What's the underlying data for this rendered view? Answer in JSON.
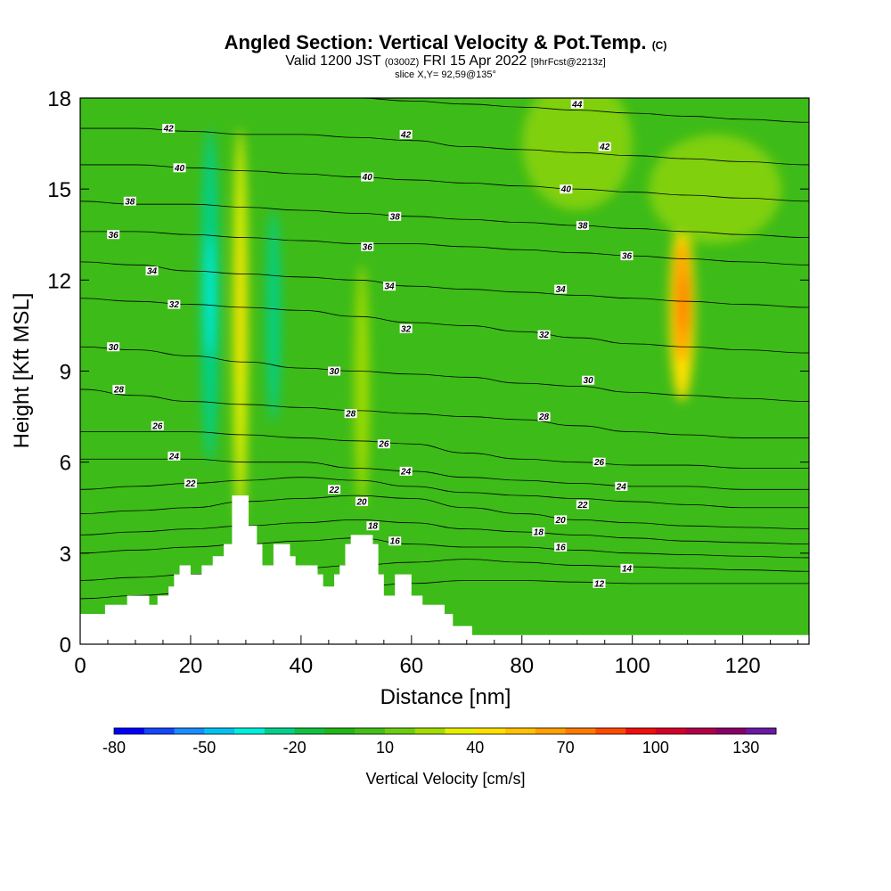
{
  "chart_data": {
    "type": "heatmap",
    "title": "Angled Section: Vertical Velocity & Pot.Temp.",
    "title_unit": "(C)",
    "subtitle_prefix": "Valid 1200 JST",
    "subtitle_zulu": "(0300Z)",
    "subtitle_date": "FRI 15 Apr 2022",
    "subtitle_fcst": "[9hrFcst@2213z]",
    "slice_label": "slice X,Y= 92,59@135°",
    "xlabel": "Distance [nm]",
    "ylabel": "Height [Kft MSL]",
    "xlim": [
      0,
      132
    ],
    "ylim": [
      0,
      18
    ],
    "x_ticks": [
      0,
      20,
      40,
      60,
      80,
      100,
      120
    ],
    "y_ticks": [
      0,
      3,
      6,
      9,
      12,
      15,
      18
    ],
    "colorbar": {
      "label": "Vertical Velocity [cm/s]",
      "tick_labels": [
        "-80",
        "-50",
        "-20",
        "10",
        "40",
        "70",
        "100",
        "130"
      ],
      "colors": [
        "#0000ff",
        "#1446ff",
        "#1a8cff",
        "#00c2f0",
        "#00eedd",
        "#00d08a",
        "#10c040",
        "#22b518",
        "#44bf18",
        "#6ccd10",
        "#a3dc00",
        "#e6ee00",
        "#ffe000",
        "#ffc200",
        "#ffa000",
        "#ff7a00",
        "#ff4a00",
        "#ee1010",
        "#d40028",
        "#b00048",
        "#8a0066",
        "#6a1aa0"
      ]
    },
    "theta_contours": [
      {
        "value": 12,
        "y": [
          1.5,
          1.6,
          1.7,
          1.75,
          1.8,
          1.9,
          2.0,
          2.1,
          2.1,
          2.05,
          2.0,
          2.0,
          2.0,
          2.0
        ]
      },
      {
        "value": 14,
        "y": [
          2.1,
          2.2,
          2.3,
          2.4,
          2.5,
          2.6,
          2.7,
          2.8,
          2.7,
          2.6,
          2.55,
          2.5,
          2.45,
          2.4
        ]
      },
      {
        "value": 16,
        "y": [
          3.0,
          3.1,
          3.2,
          3.3,
          3.4,
          3.5,
          3.3,
          3.2,
          3.2,
          3.1,
          3.0,
          2.95,
          2.9,
          2.85
        ]
      },
      {
        "value": 18,
        "y": [
          3.6,
          3.7,
          3.8,
          3.9,
          4.0,
          4.1,
          4.0,
          3.8,
          3.7,
          3.6,
          3.5,
          3.4,
          3.35,
          3.3
        ]
      },
      {
        "value": 20,
        "y": [
          4.3,
          4.4,
          4.5,
          4.7,
          4.8,
          4.9,
          4.8,
          4.5,
          4.3,
          4.1,
          4.0,
          3.9,
          3.85,
          3.8
        ]
      },
      {
        "value": 22,
        "y": [
          5.1,
          5.2,
          5.3,
          5.4,
          5.5,
          5.4,
          5.2,
          5.0,
          4.9,
          4.8,
          4.7,
          4.6,
          4.5,
          4.5
        ]
      },
      {
        "value": 24,
        "y": [
          6.1,
          6.1,
          6.1,
          6.0,
          6.0,
          5.8,
          5.7,
          5.5,
          5.4,
          5.3,
          5.2,
          5.2,
          5.1,
          5.1
        ]
      },
      {
        "value": 26,
        "y": [
          7.0,
          7.0,
          7.0,
          6.9,
          6.8,
          6.7,
          6.6,
          6.3,
          6.1,
          6.0,
          5.9,
          5.9,
          5.8,
          5.8
        ]
      },
      {
        "value": 28,
        "y": [
          8.4,
          8.2,
          8.0,
          7.9,
          7.8,
          7.7,
          7.6,
          7.5,
          7.4,
          7.2,
          7.0,
          6.9,
          6.8,
          6.8
        ]
      },
      {
        "value": 30,
        "y": [
          9.8,
          9.7,
          9.5,
          9.3,
          9.1,
          9.0,
          8.9,
          8.8,
          8.6,
          8.5,
          8.3,
          8.2,
          8.1,
          8.0
        ]
      },
      {
        "value": 32,
        "y": [
          11.4,
          11.3,
          11.2,
          11.1,
          11.0,
          10.8,
          10.6,
          10.5,
          10.3,
          10.1,
          9.9,
          9.8,
          9.7,
          9.6
        ]
      },
      {
        "value": 34,
        "y": [
          12.6,
          12.5,
          12.3,
          12.2,
          12.1,
          12.0,
          11.8,
          11.7,
          11.6,
          11.5,
          11.4,
          11.3,
          11.2,
          11.1
        ]
      },
      {
        "value": 36,
        "y": [
          13.6,
          13.6,
          13.5,
          13.4,
          13.3,
          13.2,
          13.2,
          13.1,
          13.0,
          12.9,
          12.8,
          12.7,
          12.6,
          12.5
        ]
      },
      {
        "value": 38,
        "y": [
          14.6,
          14.5,
          14.5,
          14.4,
          14.3,
          14.2,
          14.1,
          14.0,
          13.9,
          13.8,
          13.7,
          13.6,
          13.5,
          13.4
        ]
      },
      {
        "value": 40,
        "y": [
          15.8,
          15.8,
          15.7,
          15.6,
          15.5,
          15.4,
          15.3,
          15.2,
          15.1,
          15.0,
          14.9,
          14.8,
          14.7,
          14.6
        ]
      },
      {
        "value": 42,
        "y": [
          17.0,
          17.0,
          16.9,
          16.8,
          16.8,
          16.7,
          16.6,
          16.4,
          16.3,
          16.2,
          16.1,
          16.0,
          15.9,
          15.8
        ]
      },
      {
        "value": 44,
        "y": [
          18.2,
          18.2,
          18.1,
          18.1,
          18.0,
          18.0,
          17.9,
          17.8,
          17.7,
          17.6,
          17.5,
          17.4,
          17.3,
          17.2
        ]
      }
    ],
    "contour_x": [
      0,
      10,
      20,
      30,
      40,
      50,
      60,
      70,
      80,
      90,
      100,
      110,
      120,
      132
    ],
    "contour_labels": [
      {
        "text": "42",
        "x": 16,
        "y": 17.0
      },
      {
        "text": "40",
        "x": 18,
        "y": 15.7
      },
      {
        "text": "38",
        "x": 9,
        "y": 14.6
      },
      {
        "text": "36",
        "x": 6,
        "y": 13.5
      },
      {
        "text": "34",
        "x": 13,
        "y": 12.3
      },
      {
        "text": "32",
        "x": 17,
        "y": 11.2
      },
      {
        "text": "30",
        "x": 6,
        "y": 9.8
      },
      {
        "text": "28",
        "x": 7,
        "y": 8.4
      },
      {
        "text": "26",
        "x": 14,
        "y": 7.2
      },
      {
        "text": "24",
        "x": 17,
        "y": 6.2
      },
      {
        "text": "22",
        "x": 20,
        "y": 5.3
      },
      {
        "text": "42",
        "x": 59,
        "y": 16.8
      },
      {
        "text": "40",
        "x": 52,
        "y": 15.4
      },
      {
        "text": "38",
        "x": 57,
        "y": 14.1
      },
      {
        "text": "36",
        "x": 52,
        "y": 13.1
      },
      {
        "text": "34",
        "x": 56,
        "y": 11.8
      },
      {
        "text": "32",
        "x": 59,
        "y": 10.4
      },
      {
        "text": "30",
        "x": 46,
        "y": 9.0
      },
      {
        "text": "28",
        "x": 49,
        "y": 7.6
      },
      {
        "text": "26",
        "x": 55,
        "y": 6.6
      },
      {
        "text": "24",
        "x": 59,
        "y": 5.7
      },
      {
        "text": "22",
        "x": 46,
        "y": 5.1
      },
      {
        "text": "20",
        "x": 51,
        "y": 4.7
      },
      {
        "text": "18",
        "x": 53,
        "y": 3.9
      },
      {
        "text": "16",
        "x": 57,
        "y": 3.4
      },
      {
        "text": "44",
        "x": 90,
        "y": 17.8
      },
      {
        "text": "42",
        "x": 95,
        "y": 16.4
      },
      {
        "text": "40",
        "x": 88,
        "y": 15.0
      },
      {
        "text": "38",
        "x": 91,
        "y": 13.8
      },
      {
        "text": "36",
        "x": 99,
        "y": 12.8
      },
      {
        "text": "34",
        "x": 87,
        "y": 11.7
      },
      {
        "text": "32",
        "x": 84,
        "y": 10.2
      },
      {
        "text": "30",
        "x": 92,
        "y": 8.7
      },
      {
        "text": "28",
        "x": 84,
        "y": 7.5
      },
      {
        "text": "26",
        "x": 94,
        "y": 6.0
      },
      {
        "text": "24",
        "x": 98,
        "y": 5.2
      },
      {
        "text": "22",
        "x": 91,
        "y": 4.6
      },
      {
        "text": "20",
        "x": 87,
        "y": 4.1
      },
      {
        "text": "18",
        "x": 83,
        "y": 3.7
      },
      {
        "text": "16",
        "x": 87,
        "y": 3.2
      },
      {
        "text": "14",
        "x": 99,
        "y": 2.5
      },
      {
        "text": "12",
        "x": 94,
        "y": 2.0
      }
    ],
    "terrain": [
      {
        "x": 0,
        "y": 1.0
      },
      {
        "x": 4.5,
        "y": 1.0
      },
      {
        "x": 4.5,
        "y": 1.3
      },
      {
        "x": 8.5,
        "y": 1.3
      },
      {
        "x": 8.5,
        "y": 1.6
      },
      {
        "x": 12.5,
        "y": 1.6
      },
      {
        "x": 12.5,
        "y": 1.3
      },
      {
        "x": 14,
        "y": 1.3
      },
      {
        "x": 14,
        "y": 1.6
      },
      {
        "x": 16,
        "y": 1.6
      },
      {
        "x": 16,
        "y": 1.9
      },
      {
        "x": 17,
        "y": 1.9
      },
      {
        "x": 17,
        "y": 2.3
      },
      {
        "x": 18,
        "y": 2.3
      },
      {
        "x": 18,
        "y": 2.6
      },
      {
        "x": 20,
        "y": 2.6
      },
      {
        "x": 20,
        "y": 2.3
      },
      {
        "x": 22,
        "y": 2.3
      },
      {
        "x": 22,
        "y": 2.6
      },
      {
        "x": 24,
        "y": 2.6
      },
      {
        "x": 24,
        "y": 2.9
      },
      {
        "x": 26,
        "y": 2.9
      },
      {
        "x": 26,
        "y": 3.3
      },
      {
        "x": 27.5,
        "y": 3.3
      },
      {
        "x": 27.5,
        "y": 4.9
      },
      {
        "x": 30.5,
        "y": 4.9
      },
      {
        "x": 30.5,
        "y": 3.9
      },
      {
        "x": 32,
        "y": 3.9
      },
      {
        "x": 32,
        "y": 3.3
      },
      {
        "x": 33,
        "y": 3.3
      },
      {
        "x": 33,
        "y": 2.6
      },
      {
        "x": 35,
        "y": 2.6
      },
      {
        "x": 35,
        "y": 3.3
      },
      {
        "x": 38,
        "y": 3.3
      },
      {
        "x": 38,
        "y": 2.9
      },
      {
        "x": 39,
        "y": 2.9
      },
      {
        "x": 39,
        "y": 2.6
      },
      {
        "x": 43,
        "y": 2.6
      },
      {
        "x": 43,
        "y": 2.3
      },
      {
        "x": 44,
        "y": 2.3
      },
      {
        "x": 44,
        "y": 1.9
      },
      {
        "x": 46,
        "y": 1.9
      },
      {
        "x": 46,
        "y": 2.3
      },
      {
        "x": 47,
        "y": 2.3
      },
      {
        "x": 47,
        "y": 2.6
      },
      {
        "x": 48,
        "y": 2.6
      },
      {
        "x": 48,
        "y": 3.3
      },
      {
        "x": 49,
        "y": 3.3
      },
      {
        "x": 49,
        "y": 3.6
      },
      {
        "x": 53,
        "y": 3.6
      },
      {
        "x": 53,
        "y": 3.3
      },
      {
        "x": 54,
        "y": 3.3
      },
      {
        "x": 54,
        "y": 2.3
      },
      {
        "x": 55,
        "y": 2.3
      },
      {
        "x": 55,
        "y": 1.6
      },
      {
        "x": 57,
        "y": 1.6
      },
      {
        "x": 57,
        "y": 2.3
      },
      {
        "x": 60,
        "y": 2.3
      },
      {
        "x": 60,
        "y": 1.6
      },
      {
        "x": 62,
        "y": 1.6
      },
      {
        "x": 62,
        "y": 1.3
      },
      {
        "x": 66,
        "y": 1.3
      },
      {
        "x": 66,
        "y": 1.0
      },
      {
        "x": 67.5,
        "y": 1.0
      },
      {
        "x": 67.5,
        "y": 0.6
      },
      {
        "x": 71,
        "y": 0.6
      },
      {
        "x": 71,
        "y": 0.3
      },
      {
        "x": 132,
        "y": 0.3
      }
    ],
    "velocity_features": [
      {
        "kind": "upward",
        "x": 29,
        "y": 10.5,
        "rx": 1.3,
        "ry": 6.5,
        "color": "#e6ee00"
      },
      {
        "kind": "upward",
        "x": 29,
        "y": 11.0,
        "rx": 0.6,
        "ry": 2.5,
        "color": "#ffe000"
      },
      {
        "kind": "downward",
        "x": 23.5,
        "y": 11.5,
        "rx": 1.6,
        "ry": 5.5,
        "color": "#00d08a"
      },
      {
        "kind": "downward",
        "x": 23.5,
        "y": 11.5,
        "rx": 0.8,
        "ry": 2.0,
        "color": "#00eedd"
      },
      {
        "kind": "downward",
        "x": 35,
        "y": 10.8,
        "rx": 1.2,
        "ry": 3.5,
        "color": "#00d08a"
      },
      {
        "kind": "upward",
        "x": 51,
        "y": 8.5,
        "rx": 1.3,
        "ry": 4.0,
        "color": "#a3dc00"
      },
      {
        "kind": "upward",
        "x": 109,
        "y": 11.0,
        "rx": 2.3,
        "ry": 3.0,
        "color": "#ffe000"
      },
      {
        "kind": "upward",
        "x": 109,
        "y": 11.3,
        "rx": 1.6,
        "ry": 2.0,
        "color": "#ffa000"
      },
      {
        "kind": "upward",
        "x": 109.5,
        "y": 11.2,
        "rx": 0.8,
        "ry": 1.0,
        "color": "#ff7a00"
      },
      {
        "kind": "weak-upward",
        "x": 90,
        "y": 16.5,
        "rx": 10,
        "ry": 2.2,
        "color": "#80d010"
      },
      {
        "kind": "weak-upward",
        "x": 115,
        "y": 15.0,
        "rx": 12,
        "ry": 1.8,
        "color": "#80d010"
      }
    ]
  }
}
